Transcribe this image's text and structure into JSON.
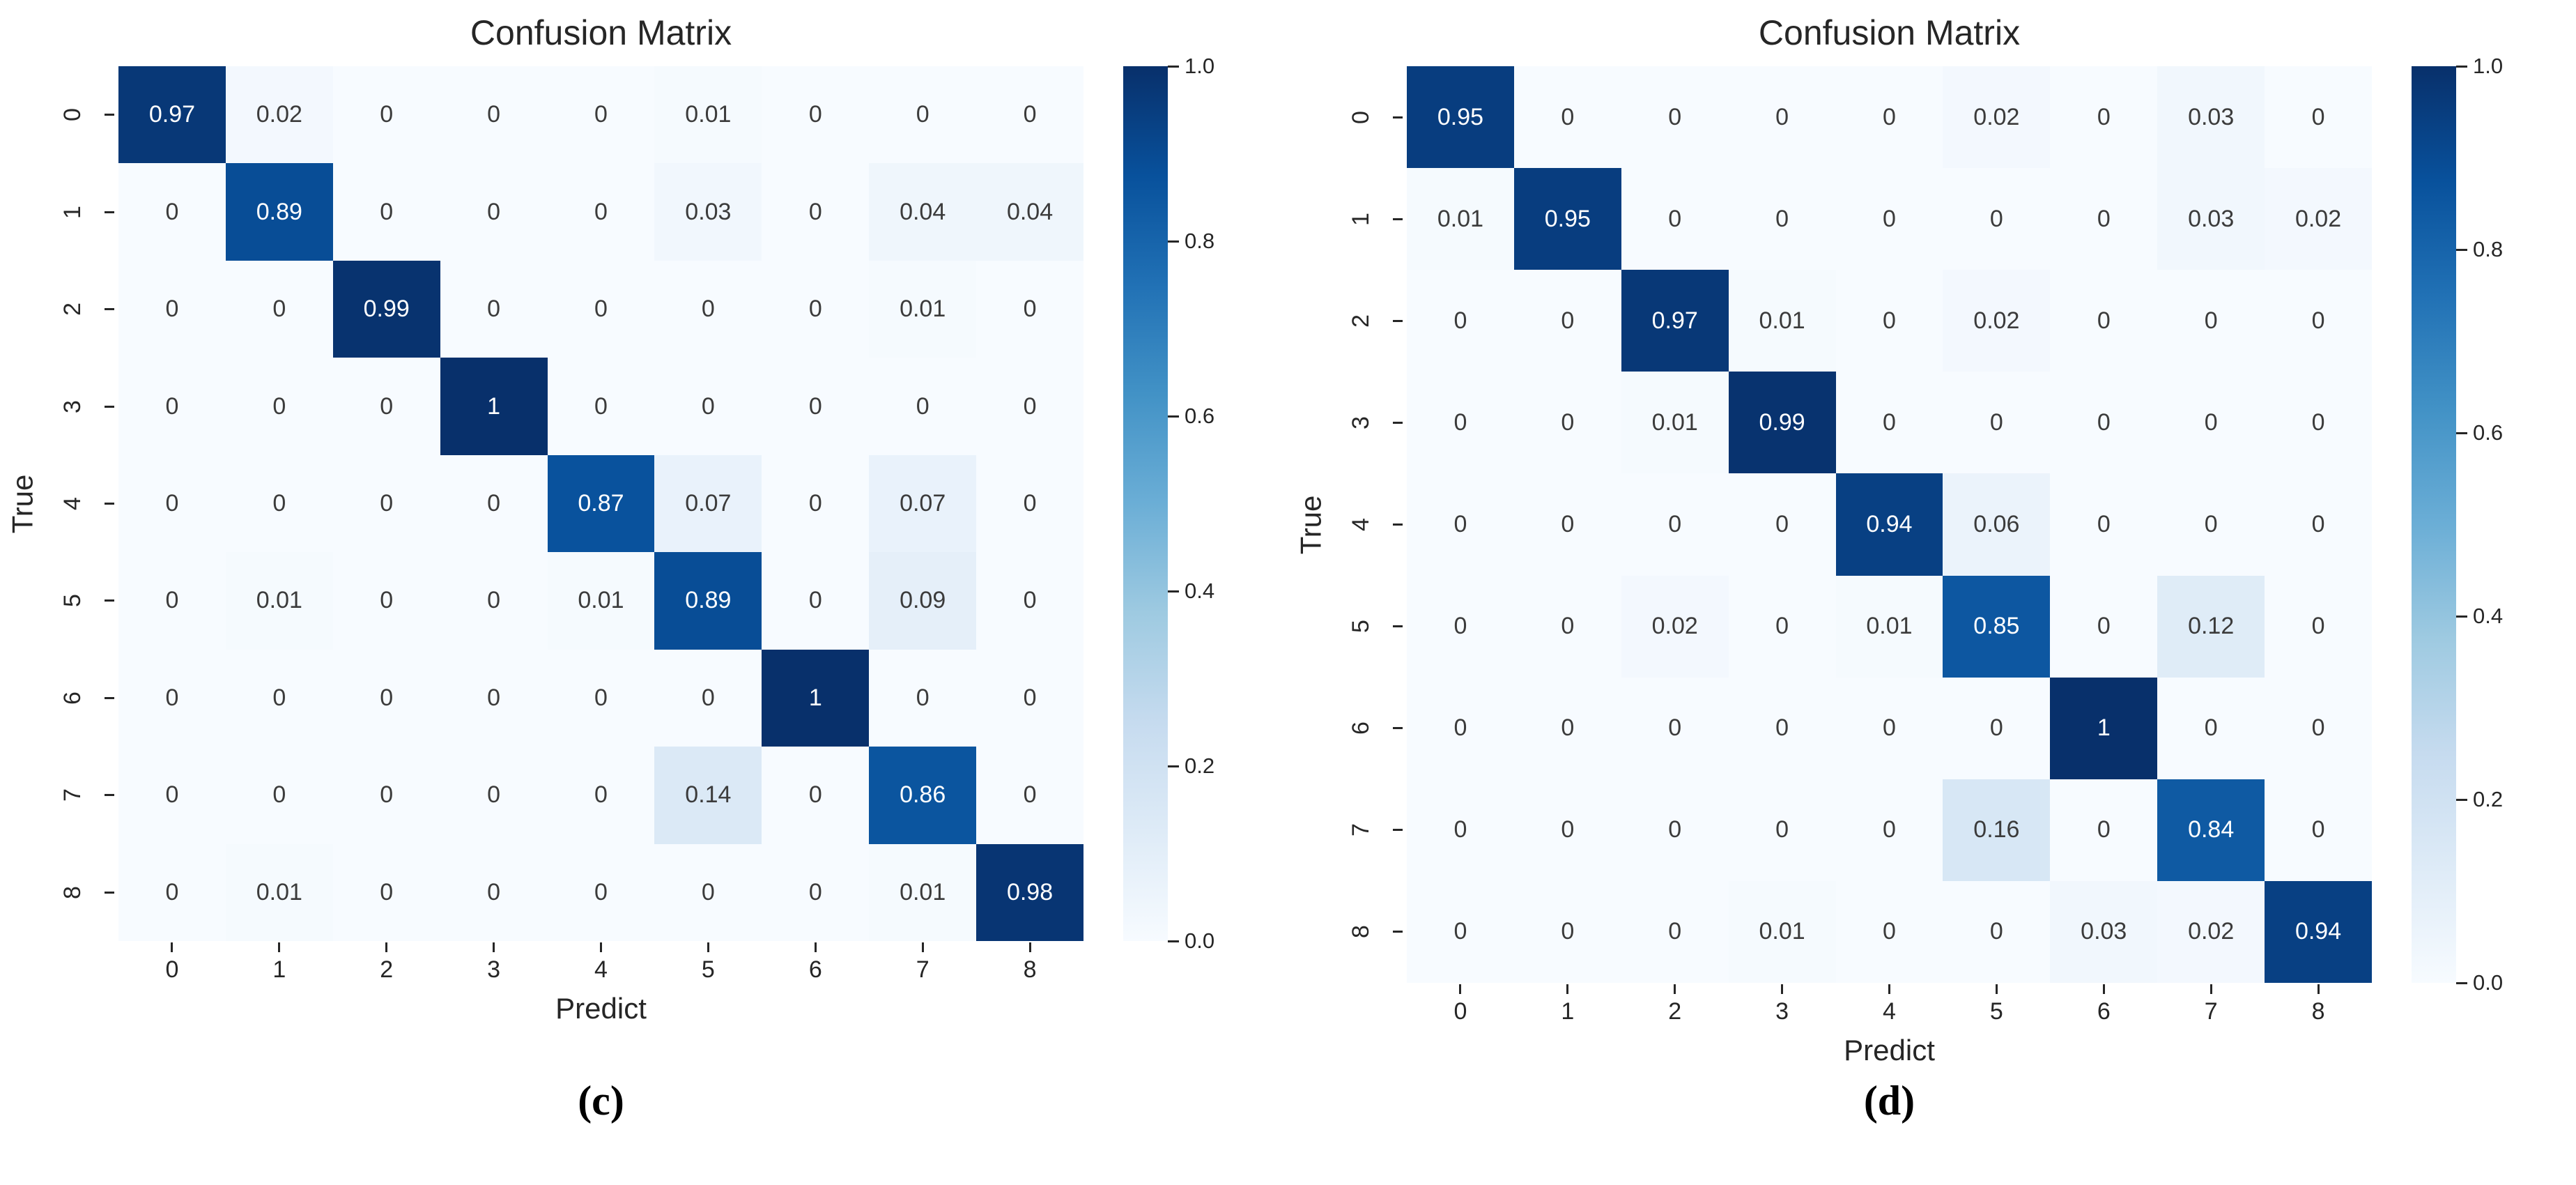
{
  "chart_data": [
    {
      "type": "heatmap",
      "panel_label": "(c)",
      "title": "Confusion Matrix",
      "xlabel": "Predict",
      "ylabel": "True",
      "x_tick_labels": [
        "0",
        "1",
        "2",
        "3",
        "4",
        "5",
        "6",
        "7",
        "8"
      ],
      "y_tick_labels": [
        "0",
        "1",
        "2",
        "3",
        "4",
        "5",
        "6",
        "7",
        "8"
      ],
      "values": [
        [
          0.97,
          0.02,
          0,
          0,
          0,
          0.01,
          0,
          0,
          0
        ],
        [
          0,
          0.89,
          0,
          0,
          0,
          0.03,
          0,
          0.04,
          0.04
        ],
        [
          0,
          0,
          0.99,
          0,
          0,
          0,
          0,
          0.01,
          0
        ],
        [
          0,
          0,
          0,
          1,
          0,
          0,
          0,
          0,
          0
        ],
        [
          0,
          0,
          0,
          0,
          0.87,
          0.07,
          0,
          0.07,
          0
        ],
        [
          0,
          0.01,
          0,
          0,
          0.01,
          0.89,
          0,
          0.09,
          0
        ],
        [
          0,
          0,
          0,
          0,
          0,
          0,
          1,
          0,
          0
        ],
        [
          0,
          0,
          0,
          0,
          0,
          0.14,
          0,
          0.86,
          0
        ],
        [
          0,
          0.01,
          0,
          0,
          0,
          0,
          0,
          0.01,
          0.98
        ]
      ],
      "value_range": [
        0,
        1
      ],
      "colormap": "Blues",
      "colorbar_ticks": [
        "1.0",
        "0.8",
        "0.6",
        "0.4",
        "0.2",
        "0.0"
      ],
      "colorbar_position": "right",
      "grid": "off"
    },
    {
      "type": "heatmap",
      "panel_label": "(d)",
      "title": "Confusion Matrix",
      "xlabel": "Predict",
      "ylabel": "True",
      "x_tick_labels": [
        "0",
        "1",
        "2",
        "3",
        "4",
        "5",
        "6",
        "7",
        "8"
      ],
      "y_tick_labels": [
        "0",
        "1",
        "2",
        "3",
        "4",
        "5",
        "6",
        "7",
        "8"
      ],
      "values": [
        [
          0.95,
          0,
          0,
          0,
          0,
          0.02,
          0,
          0.03,
          0
        ],
        [
          0.01,
          0.95,
          0,
          0,
          0,
          0,
          0,
          0.03,
          0.02
        ],
        [
          0,
          0,
          0.97,
          0.01,
          0,
          0.02,
          0,
          0,
          0
        ],
        [
          0,
          0,
          0.01,
          0.99,
          0,
          0,
          0,
          0,
          0
        ],
        [
          0,
          0,
          0,
          0,
          0.94,
          0.06,
          0,
          0,
          0
        ],
        [
          0,
          0,
          0.02,
          0,
          0.01,
          0.85,
          0,
          0.12,
          0
        ],
        [
          0,
          0,
          0,
          0,
          0,
          0,
          1,
          0,
          0
        ],
        [
          0,
          0,
          0,
          0,
          0,
          0.16,
          0,
          0.84,
          0
        ],
        [
          0,
          0,
          0,
          0.01,
          0,
          0,
          0.03,
          0.02,
          0.94
        ]
      ],
      "value_range": [
        0,
        1
      ],
      "colormap": "Blues",
      "colorbar_ticks": [
        "1.0",
        "0.8",
        "0.6",
        "0.4",
        "0.2",
        "0.0"
      ],
      "colorbar_position": "right",
      "grid": "off"
    }
  ],
  "style": {
    "colormap_stops": [
      {
        "t": 0.0,
        "color": "#f7fbff"
      },
      {
        "t": 0.125,
        "color": "#deebf7"
      },
      {
        "t": 0.25,
        "color": "#c6dbef"
      },
      {
        "t": 0.375,
        "color": "#9ecae1"
      },
      {
        "t": 0.5,
        "color": "#6baed6"
      },
      {
        "t": 0.625,
        "color": "#4292c6"
      },
      {
        "t": 0.75,
        "color": "#2171b5"
      },
      {
        "t": 0.875,
        "color": "#08519c"
      },
      {
        "t": 1.0,
        "color": "#08306b"
      }
    ],
    "annotation_text_light": "#ffffff",
    "annotation_text_dark": "#3b3b3b",
    "axis_text_color": "#262626",
    "background": "#ffffff"
  }
}
